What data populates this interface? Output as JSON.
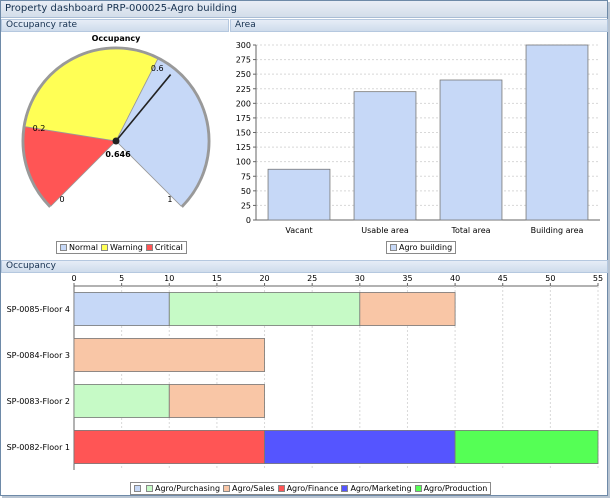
{
  "window": {
    "title": "Property dashboard PRP-000025-Agro building"
  },
  "panels": {
    "occupancy_rate": "Occupancy rate",
    "area": "Area",
    "occupancy": "Occupancy"
  },
  "gauge": {
    "title": "Occupancy",
    "value": 0.646,
    "value_label": "0.646",
    "min": 0,
    "max": 1,
    "tick_labels": [
      "0",
      "0.2",
      "0.6",
      "1"
    ],
    "bands": [
      {
        "name": "Critical",
        "from": 0,
        "to": 0.2,
        "color": "#ff5555"
      },
      {
        "name": "Warning",
        "from": 0.2,
        "to": 0.6,
        "color": "#ffff55"
      },
      {
        "name": "Normal",
        "from": 0.6,
        "to": 1,
        "color": "#c6d8f7"
      }
    ],
    "legend": [
      {
        "label": "Normal",
        "color": "#c6d8f7"
      },
      {
        "label": "Warning",
        "color": "#ffff55"
      },
      {
        "label": "Critical",
        "color": "#ff5555"
      }
    ]
  },
  "chart_data": [
    {
      "type": "bar",
      "title": "",
      "categories": [
        "Vacant",
        "Usable area",
        "Total area",
        "Building area"
      ],
      "series": [
        {
          "name": "Agro building",
          "values": [
            87,
            220,
            240,
            300
          ],
          "color": "#c6d8f7"
        }
      ],
      "ylim": [
        0,
        300
      ],
      "yticks": [
        0,
        25,
        50,
        75,
        100,
        125,
        150,
        175,
        200,
        225,
        250,
        275,
        300
      ],
      "grid": true,
      "legend": "bottom"
    },
    {
      "type": "bar",
      "orientation": "horizontal",
      "stacked": true,
      "title": "",
      "categories": [
        "SP-0085-Floor 4",
        "SP-0084-Floor 3",
        "SP-0083-Floor 2",
        "SP-0082-Floor 1"
      ],
      "series": [
        {
          "name": "",
          "color": "#c6d8f7",
          "values": [
            10,
            0,
            0,
            0
          ]
        },
        {
          "name": "Agro/Purchasing",
          "color": "#c6fac6",
          "values": [
            20,
            0,
            10,
            0
          ]
        },
        {
          "name": "Agro/Sales",
          "color": "#f9c6a6",
          "values": [
            10,
            20,
            10,
            0
          ]
        },
        {
          "name": "Agro/Finance",
          "color": "#ff5555",
          "values": [
            0,
            0,
            0,
            20
          ]
        },
        {
          "name": "Agro/Marketing",
          "color": "#5555ff",
          "values": [
            0,
            0,
            0,
            20
          ]
        },
        {
          "name": "Agro/Production",
          "color": "#55ff55",
          "values": [
            0,
            0,
            0,
            15
          ]
        }
      ],
      "xlim": [
        0,
        55
      ],
      "xticks": [
        0,
        5,
        10,
        15,
        20,
        25,
        30,
        35,
        40,
        45,
        50,
        55
      ],
      "grid": true,
      "legend": "bottom"
    }
  ]
}
